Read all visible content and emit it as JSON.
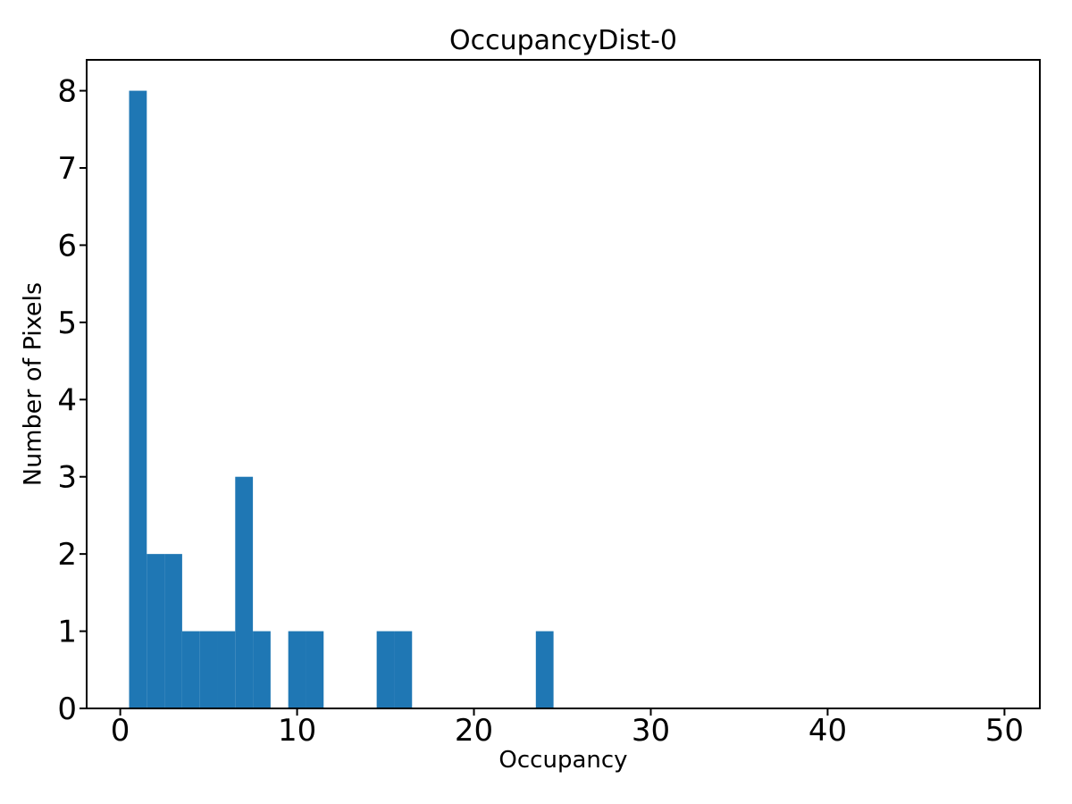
{
  "chart_data": {
    "type": "bar",
    "title": "OccupancyDist-0",
    "xlabel": "Occupancy",
    "ylabel": "Number of Pixels",
    "bar_color": "#1f77b4",
    "axis_color": "#000000",
    "background_color": "#ffffff",
    "bin_width": 1,
    "bin_centers": [
      1,
      2,
      3,
      4,
      5,
      6,
      7,
      8,
      10,
      11,
      15,
      16,
      24
    ],
    "counts": [
      8,
      2,
      2,
      1,
      1,
      1,
      3,
      1,
      1,
      1,
      1,
      1,
      1
    ],
    "xlim": [
      -1.9,
      52.0
    ],
    "ylim": [
      0,
      8.4
    ],
    "xticks": [
      0,
      10,
      20,
      30,
      40,
      50
    ],
    "yticks": [
      0,
      1,
      2,
      3,
      4,
      5,
      6,
      7,
      8
    ],
    "grid": false,
    "legend_position": "none"
  }
}
